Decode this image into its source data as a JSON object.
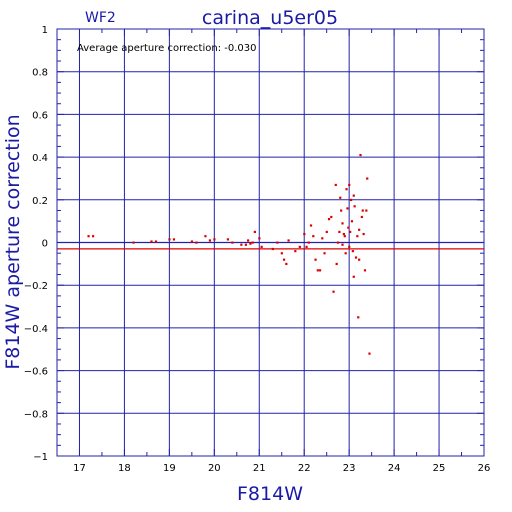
{
  "chart_data": {
    "type": "scatter",
    "title": "carina_u5er05",
    "chip": "WF2",
    "annotation": "Average aperture correction: -0.030",
    "xlabel": "F814W",
    "ylabel": "F814W aperture correction",
    "xlim": [
      16.5,
      26
    ],
    "ylim": [
      -1,
      1
    ],
    "xticks": [
      17,
      18,
      19,
      20,
      21,
      22,
      23,
      24,
      25,
      26
    ],
    "yticks": [
      -1,
      -0.8,
      -0.6,
      -0.4,
      -0.2,
      0,
      0.2,
      0.4,
      0.6,
      0.8,
      1
    ],
    "ytick_labels": [
      "−1",
      "−0.8",
      "−0.6",
      "−0.4",
      "−0.2",
      "0",
      "0.2",
      "0.4",
      "0.6",
      "0.8",
      "1"
    ],
    "grid": true,
    "reference_lines": [
      {
        "y": 0,
        "color": "#2222aa"
      },
      {
        "y": -0.03,
        "color": "#dd0000"
      }
    ],
    "colors": {
      "axes": "#2222aa",
      "points": "#dd0000",
      "labels": "#1a1aa6"
    },
    "points": [
      [
        17.2,
        0.03
      ],
      [
        17.3,
        0.03
      ],
      [
        18.2,
        0.0
      ],
      [
        18.6,
        0.005
      ],
      [
        18.7,
        0.005
      ],
      [
        19.0,
        0.015
      ],
      [
        19.1,
        0.015
      ],
      [
        19.5,
        0.005
      ],
      [
        19.6,
        0.0
      ],
      [
        19.8,
        0.03
      ],
      [
        19.9,
        0.01
      ],
      [
        20.0,
        0.015
      ],
      [
        20.3,
        0.015
      ],
      [
        20.4,
        0.0
      ],
      [
        20.6,
        -0.01
      ],
      [
        20.7,
        -0.01
      ],
      [
        20.75,
        0.01
      ],
      [
        20.8,
        -0.005
      ],
      [
        20.85,
        0.0
      ],
      [
        20.9,
        0.05
      ],
      [
        21.0,
        0.02
      ],
      [
        21.05,
        -0.02
      ],
      [
        21.3,
        -0.03
      ],
      [
        21.4,
        0.0
      ],
      [
        21.5,
        -0.05
      ],
      [
        21.55,
        -0.08
      ],
      [
        21.6,
        -0.1
      ],
      [
        21.65,
        0.01
      ],
      [
        21.8,
        -0.04
      ],
      [
        21.9,
        -0.02
      ],
      [
        22.0,
        0.04
      ],
      [
        22.05,
        -0.02
      ],
      [
        22.1,
        0.0
      ],
      [
        22.15,
        0.08
      ],
      [
        22.2,
        0.03
      ],
      [
        22.25,
        -0.08
      ],
      [
        22.3,
        -0.13
      ],
      [
        22.35,
        -0.13
      ],
      [
        22.4,
        0.02
      ],
      [
        22.45,
        -0.05
      ],
      [
        22.5,
        0.05
      ],
      [
        22.55,
        0.11
      ],
      [
        22.6,
        0.12
      ],
      [
        22.65,
        -0.23
      ],
      [
        22.7,
        0.27
      ],
      [
        22.72,
        -0.1
      ],
      [
        22.75,
        0.0
      ],
      [
        22.78,
        0.05
      ],
      [
        22.8,
        0.21
      ],
      [
        22.82,
        0.15
      ],
      [
        22.85,
        0.09
      ],
      [
        22.88,
        0.04
      ],
      [
        22.9,
        0.03
      ],
      [
        22.92,
        -0.05
      ],
      [
        22.94,
        0.25
      ],
      [
        22.96,
        0.16
      ],
      [
        22.98,
        0.07
      ],
      [
        23.0,
        0.27
      ],
      [
        23.02,
        0.05
      ],
      [
        23.04,
        0.2
      ],
      [
        23.06,
        0.1
      ],
      [
        23.08,
        -0.04
      ],
      [
        23.1,
        -0.16
      ],
      [
        23.12,
        0.17
      ],
      [
        23.15,
        -0.07
      ],
      [
        23.18,
        0.03
      ],
      [
        23.2,
        -0.35
      ],
      [
        23.22,
        0.06
      ],
      [
        23.25,
        0.41
      ],
      [
        23.28,
        0.12
      ],
      [
        23.3,
        0.15
      ],
      [
        23.32,
        0.04
      ],
      [
        23.35,
        -0.13
      ],
      [
        23.38,
        0.15
      ],
      [
        23.4,
        0.3
      ],
      [
        23.45,
        -0.52
      ],
      [
        23.0,
        -0.02
      ],
      [
        22.85,
        -0.01
      ],
      [
        23.1,
        0.22
      ],
      [
        23.22,
        -0.08
      ]
    ]
  }
}
